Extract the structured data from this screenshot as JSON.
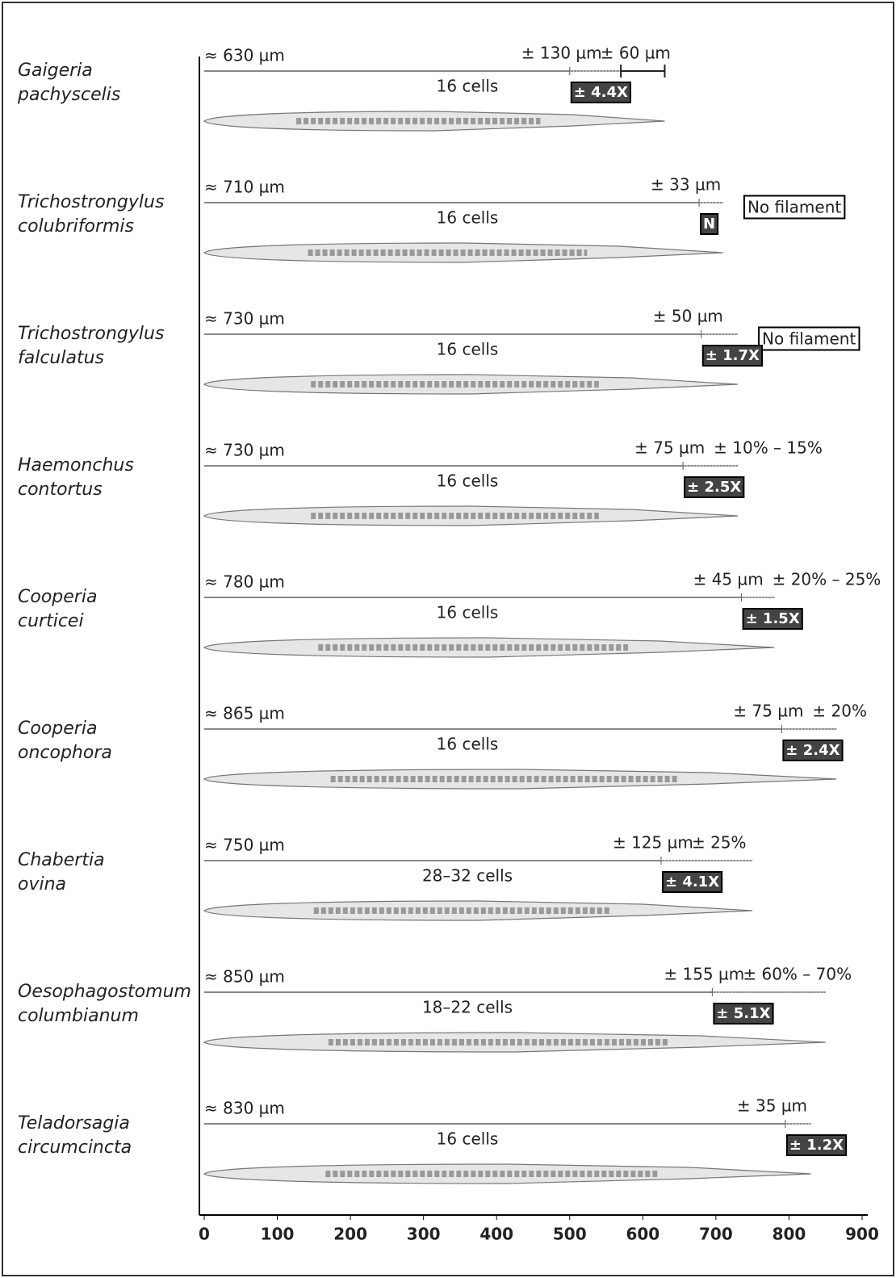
{
  "chart_data": {
    "type": "larva",
    "xlim": [
      0,
      900
    ],
    "xticks": [
      0,
      100,
      200,
      300,
      400,
      500,
      600,
      700,
      800,
      900
    ],
    "color": "#888888",
    "series": [
      {
        "species": [
          "Gaigeria",
          "pachyscelis"
        ],
        "length": 630,
        "length_label": "≈ 630 µm",
        "tail": 130,
        "tail_label": "± 130 µm",
        "filament": 60,
        "filament_label": "± 60 µm",
        "cells": "16 cells",
        "ratio_label": "± 4.4X"
      },
      {
        "species": [
          "Trichostrongylus",
          "colubriformis"
        ],
        "length": 710,
        "length_label": "≈ 710 µm",
        "tail": 33,
        "tail_label": "± 33 µm",
        "filament_label": "No filament",
        "cells": "16 cells",
        "ratio_label": "N"
      },
      {
        "species": [
          "Trichostrongylus",
          "falculatus"
        ],
        "length": 730,
        "length_label": "≈ 730 µm",
        "tail": 50,
        "tail_label": "± 50 µm",
        "filament_label": "No filament",
        "cells": "16 cells",
        "ratio_label": "± 1.7X"
      },
      {
        "species": [
          "Haemonchus",
          "contortus"
        ],
        "length": 730,
        "length_label": "≈ 730 µm",
        "tail": 75,
        "tail_label": "± 75 µm",
        "filament_label": "± 10% – 15%",
        "cells": "16 cells",
        "ratio_label": "± 2.5X"
      },
      {
        "species": [
          "Cooperia",
          "curticei"
        ],
        "length": 780,
        "length_label": "≈ 780 µm",
        "tail": 45,
        "tail_label": "± 45 µm",
        "filament_label": "± 20% – 25%",
        "cells": "16 cells",
        "ratio_label": "± 1.5X"
      },
      {
        "species": [
          "Cooperia",
          "oncophora"
        ],
        "length": 865,
        "length_label": "≈ 865 µm",
        "tail": 75,
        "tail_label": "± 75 µm",
        "filament_label": "± 20%",
        "cells": "16 cells",
        "ratio_label": "± 2.4X"
      },
      {
        "species": [
          "Chabertia",
          "ovina"
        ],
        "length": 750,
        "length_label": "≈ 750 µm",
        "tail": 125,
        "tail_label": "± 125 µm",
        "filament_label": "± 25%",
        "cells": "28–32 cells",
        "ratio_label": "± 4.1X"
      },
      {
        "species": [
          "Oesophagostomum",
          "columbianum"
        ],
        "length": 850,
        "length_label": "≈ 850 µm",
        "tail": 155,
        "tail_label": "± 155 µm",
        "filament_label": "± 60% – 70%",
        "cells": "18–22 cells",
        "ratio_label": "± 5.1X"
      },
      {
        "species": [
          "Teladorsagia",
          "circumcincta"
        ],
        "length": 830,
        "length_label": "≈ 830 µm",
        "tail": 35,
        "tail_label": "± 35 µm",
        "cells": "16 cells",
        "ratio_label": "± 1.2X"
      }
    ]
  }
}
